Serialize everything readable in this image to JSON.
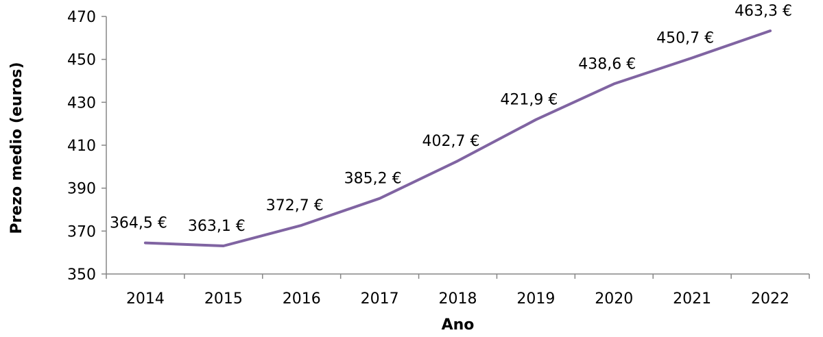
{
  "chart_data": {
    "type": "line",
    "categories": [
      "2014",
      "2015",
      "2016",
      "2017",
      "2018",
      "2019",
      "2020",
      "2021",
      "2022"
    ],
    "series": [
      {
        "values": [
          364.5,
          363.1,
          372.7,
          385.2,
          402.7,
          421.9,
          438.6,
          450.7,
          463.3
        ],
        "labels": [
          "364,5 €",
          "363,1 €",
          "372,7 €",
          "385,2 €",
          "402,7 €",
          "421,9 €",
          "438,6 €",
          "450,7 €",
          "463,3 €"
        ],
        "color": "#8064A2"
      }
    ],
    "title": "",
    "xlabel": "Ano",
    "ylabel": "Prezo medio (euros)",
    "ylim": [
      350,
      470
    ],
    "yticks": [
      350,
      370,
      390,
      410,
      430,
      450,
      470
    ],
    "ytick_labels": [
      "350",
      "370",
      "390",
      "410",
      "430",
      "450",
      "470"
    ],
    "grid": false,
    "legend": "none"
  }
}
